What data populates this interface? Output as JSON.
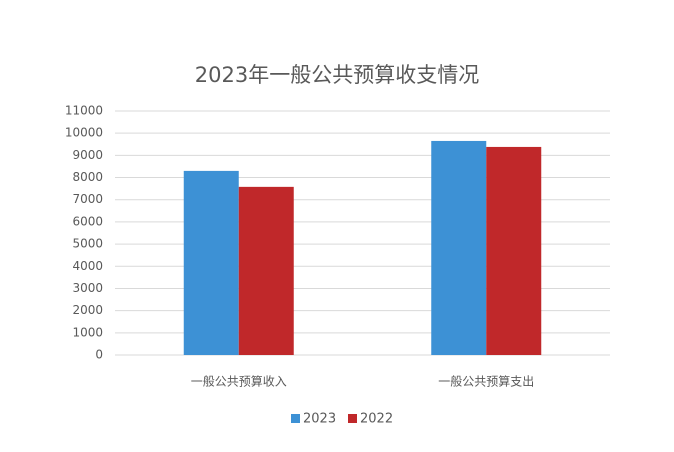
{
  "chart_data": {
    "type": "bar",
    "title": "2023年一般公共预算收支情况",
    "categories": [
      "一般公共预算收入",
      "一般公共预算支出"
    ],
    "series": [
      {
        "name": "2023",
        "color": "#3d91d5",
        "values": [
          8300,
          9650
        ]
      },
      {
        "name": "2022",
        "color": "#c0282a",
        "values": [
          7580,
          9380
        ]
      }
    ],
    "ylim": [
      0,
      11000
    ],
    "yticks": [
      0,
      1000,
      2000,
      3000,
      4000,
      5000,
      6000,
      7000,
      8000,
      9000,
      10000,
      11000
    ],
    "grid": true
  }
}
